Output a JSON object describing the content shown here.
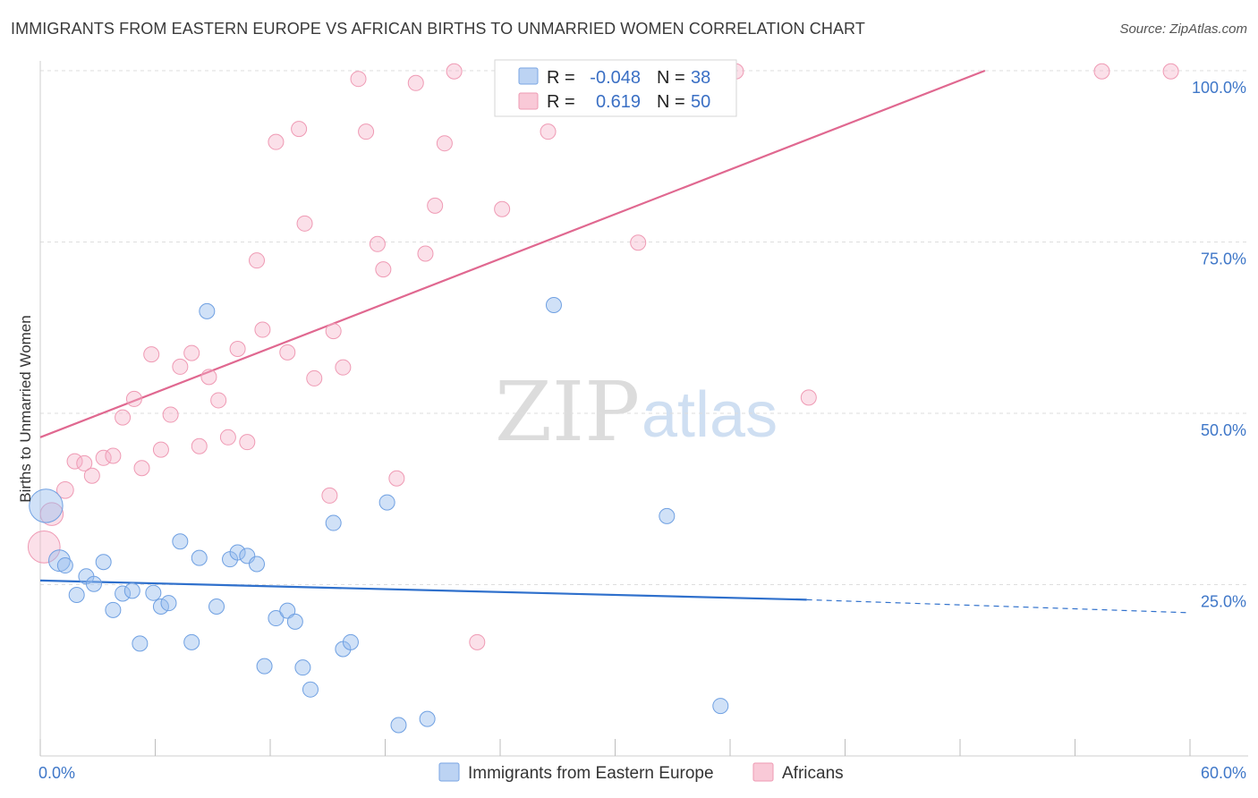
{
  "title": "IMMIGRANTS FROM EASTERN EUROPE VS AFRICAN BIRTHS TO UNMARRIED WOMEN CORRELATION CHART",
  "source": "Source: ZipAtlas.com",
  "watermark": {
    "zip": "ZIP",
    "atlas": "atlas"
  },
  "stats": {
    "row1": {
      "r_label": "R =",
      "r_value": "-0.048",
      "n_label": "N =",
      "n_value": "38"
    },
    "row2": {
      "r_label": "R =",
      "r_value": "0.619",
      "n_label": "N =",
      "n_value": "50"
    }
  },
  "chart_data": {
    "type": "scatter",
    "title": "IMMIGRANTS FROM EASTERN EUROPE VS AFRICAN BIRTHS TO UNMARRIED WOMEN CORRELATION CHART",
    "xlabel": "",
    "ylabel": "Births to Unmarried Women",
    "xlim": [
      0,
      60
    ],
    "ylim": [
      0,
      100
    ],
    "x_tick_labels": [
      "0.0%",
      "60.0%"
    ],
    "y_ticks": [
      25,
      50,
      75,
      100
    ],
    "y_tick_labels": [
      "25.0%",
      "50.0%",
      "75.0%",
      "100.0%"
    ],
    "grid": "horizontal dashed",
    "legend_position": "bottom-center",
    "colors": {
      "blue": "#6fa0e2",
      "pink": "#ef9ab4",
      "blue_line": "#2f70cc",
      "pink_line": "#e06890"
    },
    "series": [
      {
        "name": "Immigrants from Eastern Europe",
        "color": "#6fa0e2",
        "trend": {
          "x0": 0,
          "y0": 25.6,
          "x1": 40,
          "y1": 22.8,
          "dashed_to_x": 60,
          "dashed_to_y": 20.9
        },
        "points": [
          [
            0.3,
            36.5,
            2.2
          ],
          [
            1.0,
            28.5,
            1.4
          ],
          [
            1.3,
            27.8,
            1
          ],
          [
            1.9,
            23.5,
            1
          ],
          [
            2.4,
            26.2,
            1
          ],
          [
            2.8,
            25.1,
            1
          ],
          [
            3.3,
            28.3,
            1
          ],
          [
            3.8,
            21.3,
            1
          ],
          [
            4.3,
            23.7,
            1
          ],
          [
            4.8,
            24.1,
            1
          ],
          [
            5.2,
            16.4,
            1
          ],
          [
            5.9,
            23.8,
            1
          ],
          [
            6.3,
            21.8,
            1
          ],
          [
            6.7,
            22.3,
            1
          ],
          [
            7.3,
            31.3,
            1
          ],
          [
            7.9,
            16.6,
            1
          ],
          [
            8.3,
            28.9,
            1
          ],
          [
            8.7,
            64.9,
            1
          ],
          [
            9.2,
            21.8,
            1
          ],
          [
            9.9,
            28.7,
            1
          ],
          [
            10.3,
            29.7,
            1
          ],
          [
            10.8,
            29.2,
            1
          ],
          [
            11.3,
            28.0,
            1
          ],
          [
            11.7,
            13.1,
            1
          ],
          [
            12.3,
            20.1,
            1
          ],
          [
            12.9,
            21.2,
            1
          ],
          [
            13.3,
            19.6,
            1
          ],
          [
            13.7,
            12.9,
            1
          ],
          [
            14.1,
            9.7,
            1
          ],
          [
            15.3,
            34.0,
            1
          ],
          [
            15.8,
            15.6,
            1
          ],
          [
            16.2,
            16.6,
            1
          ],
          [
            18.1,
            37.0,
            1
          ],
          [
            18.7,
            4.5,
            1
          ],
          [
            20.2,
            5.4,
            1
          ],
          [
            26.8,
            65.8,
            1
          ],
          [
            32.7,
            35.0,
            1
          ],
          [
            35.5,
            7.3,
            1
          ]
        ]
      },
      {
        "name": "Africans",
        "color": "#ef9ab4",
        "trend": {
          "x0": 0,
          "y0": 46.5,
          "x1": 49.3,
          "y1": 100
        },
        "points": [
          [
            0.2,
            30.5,
            2.1
          ],
          [
            0.6,
            35.3,
            1.5
          ],
          [
            1.3,
            38.8,
            1.1
          ],
          [
            1.8,
            43.0,
            1
          ],
          [
            2.3,
            42.7,
            1
          ],
          [
            2.7,
            40.9,
            1
          ],
          [
            3.3,
            43.5,
            1
          ],
          [
            3.8,
            43.8,
            1
          ],
          [
            4.3,
            49.4,
            1
          ],
          [
            4.9,
            52.1,
            1
          ],
          [
            5.3,
            42.0,
            1
          ],
          [
            5.8,
            58.6,
            1
          ],
          [
            6.3,
            44.7,
            1
          ],
          [
            6.8,
            49.8,
            1
          ],
          [
            7.3,
            56.8,
            1
          ],
          [
            7.9,
            58.8,
            1
          ],
          [
            8.3,
            45.2,
            1
          ],
          [
            8.8,
            55.3,
            1
          ],
          [
            9.3,
            51.9,
            1
          ],
          [
            9.8,
            46.5,
            1
          ],
          [
            10.3,
            59.4,
            1
          ],
          [
            10.8,
            45.8,
            1
          ],
          [
            11.3,
            72.3,
            1
          ],
          [
            11.6,
            62.2,
            1
          ],
          [
            12.3,
            89.6,
            1
          ],
          [
            12.9,
            58.9,
            1
          ],
          [
            13.5,
            91.5,
            1
          ],
          [
            13.8,
            77.7,
            1
          ],
          [
            14.3,
            55.1,
            1
          ],
          [
            15.1,
            38.0,
            1
          ],
          [
            15.3,
            62.0,
            1
          ],
          [
            15.8,
            56.7,
            1
          ],
          [
            16.6,
            98.8,
            1
          ],
          [
            17.0,
            91.1,
            1
          ],
          [
            17.6,
            74.7,
            1
          ],
          [
            17.9,
            71.0,
            1
          ],
          [
            18.6,
            40.5,
            1
          ],
          [
            19.6,
            98.2,
            1
          ],
          [
            20.1,
            73.3,
            1
          ],
          [
            20.6,
            80.3,
            1
          ],
          [
            21.1,
            89.4,
            1
          ],
          [
            21.6,
            99.9,
            1
          ],
          [
            22.8,
            16.6,
            1
          ],
          [
            24.1,
            79.8,
            1
          ],
          [
            26.5,
            91.1,
            1
          ],
          [
            31.2,
            74.9,
            1
          ],
          [
            36.3,
            99.9,
            1
          ],
          [
            40.1,
            52.3,
            1
          ],
          [
            55.4,
            99.9,
            1
          ],
          [
            59.0,
            99.9,
            1
          ]
        ]
      }
    ]
  },
  "legend": {
    "items": [
      {
        "label": "Immigrants from Eastern Europe"
      },
      {
        "label": "Africans"
      }
    ]
  }
}
